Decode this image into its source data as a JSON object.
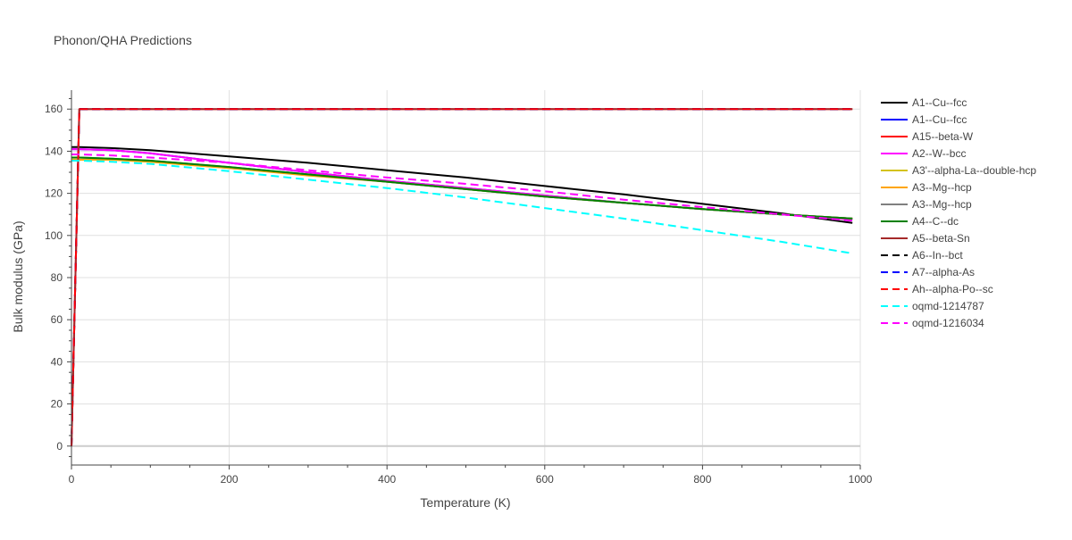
{
  "chart_data": {
    "type": "line",
    "title": "Phonon/QHA Predictions",
    "xlabel": "Temperature (K)",
    "ylabel": "Bulk modulus (GPa)",
    "xlim": [
      0,
      1000
    ],
    "ylim": [
      -9,
      169
    ],
    "x_ticks": [
      0,
      200,
      400,
      600,
      800,
      1000
    ],
    "y_ticks": [
      0,
      20,
      40,
      60,
      80,
      100,
      120,
      140,
      160
    ],
    "grid": true,
    "legend_position": "right",
    "series": [
      {
        "name": "A1--Cu--fcc",
        "color": "#000000",
        "dash": "solid",
        "x": [
          0,
          10,
          50,
          100,
          200,
          300,
          400,
          500,
          600,
          700,
          800,
          900,
          990
        ],
        "y": [
          142,
          142,
          141.5,
          140.5,
          137.5,
          134.5,
          131,
          127.5,
          123.5,
          119.5,
          115,
          110.5,
          106
        ]
      },
      {
        "name": "A1--Cu--fcc",
        "color": "#0000ff",
        "dash": "solid",
        "x": [
          0,
          10,
          50,
          100,
          200,
          300,
          400,
          500,
          600,
          700,
          800,
          900,
          990
        ],
        "y": [
          141,
          141,
          140.5,
          139,
          134.5,
          130,
          126,
          122.5,
          119,
          115.5,
          112.5,
          110,
          108
        ]
      },
      {
        "name": "A15--beta-W",
        "color": "#ff0000",
        "dash": "solid",
        "x": [
          0,
          10,
          990
        ],
        "y": [
          0,
          160,
          160
        ]
      },
      {
        "name": "A2--W--bcc",
        "color": "#ff00ff",
        "dash": "solid",
        "x": [
          0,
          10,
          50,
          100,
          200,
          300,
          400,
          500,
          600,
          700,
          800,
          900,
          990
        ],
        "y": [
          141,
          141,
          140.5,
          139,
          134.5,
          130,
          126,
          122.5,
          119,
          115.5,
          112.5,
          110,
          107.5
        ]
      },
      {
        "name": "A3'--alpha-La--double-hcp",
        "color": "#d4c21c",
        "dash": "solid",
        "x": [
          0,
          10,
          50,
          100,
          200,
          300,
          400,
          500,
          600,
          700,
          800,
          900,
          990
        ],
        "y": [
          136,
          136,
          136,
          135,
          132,
          129,
          125.5,
          122,
          118.5,
          115.5,
          112.5,
          110,
          108
        ]
      },
      {
        "name": "A3--Mg--hcp",
        "color": "#ffa500",
        "dash": "solid",
        "x": [
          0,
          10,
          50,
          100,
          200,
          300,
          400,
          500,
          600,
          700,
          800,
          900,
          990
        ],
        "y": [
          136,
          136,
          136,
          135,
          132,
          128.5,
          125.5,
          122,
          118.5,
          115.5,
          112.5,
          110,
          108
        ]
      },
      {
        "name": "A3--Mg--hcp",
        "color": "#808080",
        "dash": "solid",
        "x": [
          0,
          10,
          50,
          100,
          200,
          300,
          400,
          500,
          600,
          700,
          800,
          900,
          990
        ],
        "y": [
          137,
          137,
          136.5,
          135.5,
          132.5,
          129,
          125.5,
          122,
          118.5,
          115.5,
          112.5,
          110,
          108
        ]
      },
      {
        "name": "A4--C--dc",
        "color": "#008000",
        "dash": "solid",
        "x": [
          0,
          10,
          50,
          100,
          200,
          300,
          400,
          500,
          600,
          700,
          800,
          900,
          990
        ],
        "y": [
          137,
          137,
          136.5,
          135.5,
          132.5,
          129,
          125.5,
          122,
          118.5,
          115.5,
          112.5,
          110,
          108
        ]
      },
      {
        "name": "A5--beta-Sn",
        "color": "#a52a2a",
        "dash": "solid",
        "x": [
          0,
          10,
          990
        ],
        "y": [
          0,
          160,
          160
        ]
      },
      {
        "name": "A6--In--bct",
        "color": "#000000",
        "dash": "dash",
        "x": [
          0,
          10,
          990
        ],
        "y": [
          0,
          160,
          160
        ]
      },
      {
        "name": "A7--alpha-As",
        "color": "#0000ff",
        "dash": "dash",
        "x": [
          0,
          10,
          990
        ],
        "y": [
          0,
          160,
          160
        ]
      },
      {
        "name": "Ah--alpha-Po--sc",
        "color": "#ff0000",
        "dash": "dash",
        "x": [
          0,
          10,
          990
        ],
        "y": [
          0,
          160,
          160
        ]
      },
      {
        "name": "oqmd-1214787",
        "color": "#00ffff",
        "dash": "dash",
        "x": [
          0,
          10,
          50,
          100,
          200,
          300,
          400,
          500,
          600,
          700,
          800,
          900,
          990
        ],
        "y": [
          135.5,
          135.5,
          135,
          134,
          130.5,
          126.5,
          122.5,
          118,
          113,
          108,
          102.5,
          97,
          91.5
        ]
      },
      {
        "name": "oqmd-1216034",
        "color": "#ff00ff",
        "dash": "dash",
        "x": [
          0,
          10,
          50,
          100,
          200,
          300,
          400,
          500,
          600,
          700,
          800,
          900,
          990
        ],
        "y": [
          138.5,
          138.5,
          138,
          137,
          134.5,
          131,
          127.5,
          124.5,
          121,
          117,
          113.5,
          110,
          107
        ]
      }
    ]
  }
}
